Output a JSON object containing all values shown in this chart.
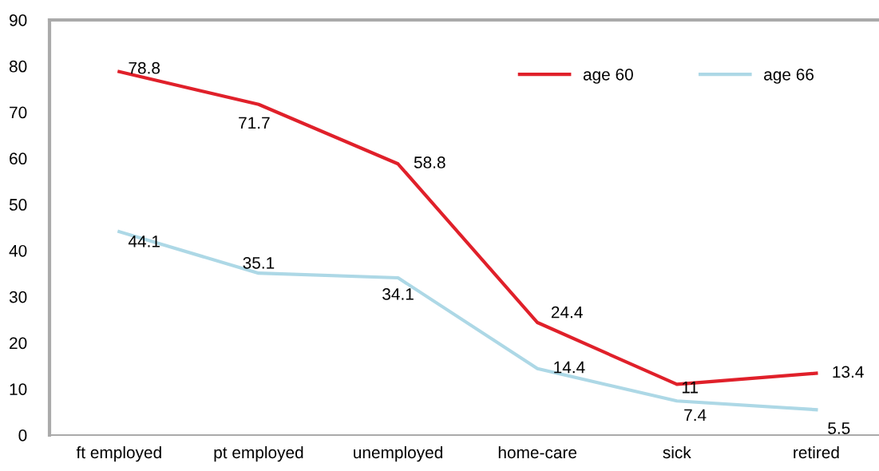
{
  "chart_data": {
    "type": "line",
    "categories": [
      "ft employed",
      "pt employed",
      "unemployed",
      "home-care",
      "sick",
      "retired"
    ],
    "series": [
      {
        "name": "age 60",
        "color": "#e0202a",
        "values": [
          78.8,
          71.7,
          58.8,
          24.4,
          11,
          13.4
        ]
      },
      {
        "name": "age 66",
        "color": "#add8e6",
        "values": [
          44.1,
          35.1,
          34.1,
          14.4,
          7.4,
          5.5
        ]
      }
    ],
    "ylim": [
      0,
      90
    ],
    "yticks": [
      0,
      10,
      20,
      30,
      40,
      50,
      60,
      70,
      80,
      90
    ],
    "grid": false,
    "legend": "top right",
    "data_labels": true,
    "marker": "none",
    "line_style": "solid"
  }
}
